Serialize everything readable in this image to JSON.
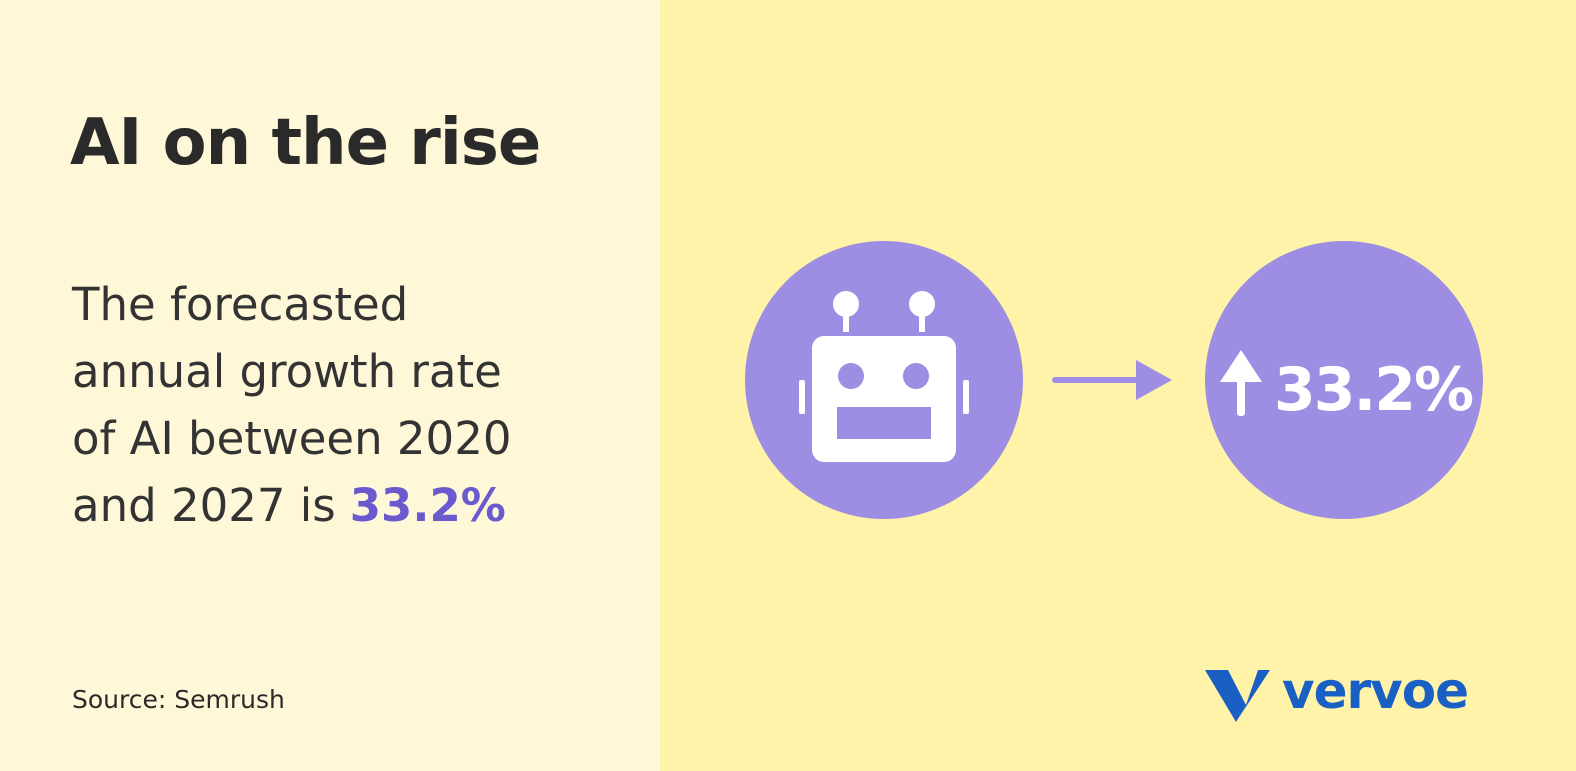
{
  "header": {
    "title": "AI on the rise"
  },
  "body": {
    "lines": [
      "The forecasted",
      "annual growth rate",
      "of AI between 2020",
      "and 2027 is"
    ],
    "highlight": "33.2%"
  },
  "source": "Source: Semrush",
  "graphic": {
    "stat": "33.2%"
  },
  "logo": "vervoe"
}
